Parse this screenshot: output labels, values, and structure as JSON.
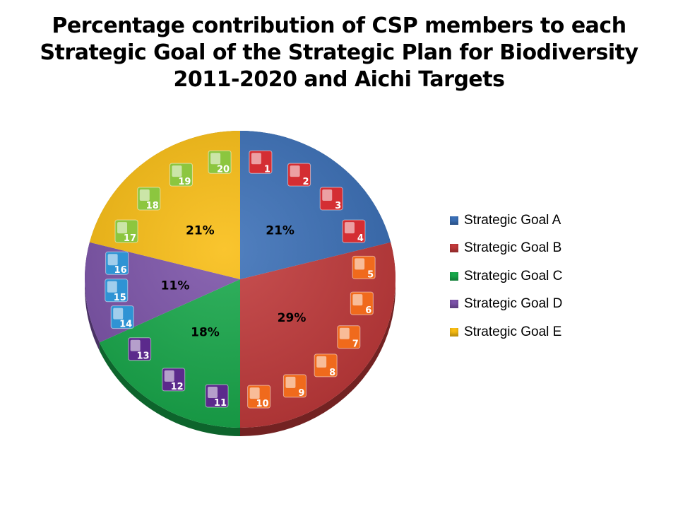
{
  "chart_data": {
    "type": "pie",
    "title": "Percentage contribution of CSP members to each Strategic Goal of the Strategic Plan for Biodiversity 2011-2020 and Aichi Targets",
    "title_lines": [
      "Percentage contribution of CSP members to each",
      "Strategic Goal of the Strategic Plan for Biodiversity",
      "2011-2020 and Aichi Targets"
    ],
    "categories": [
      "Strategic Goal A",
      "Strategic Goal B",
      "Strategic Goal C",
      "Strategic Goal D",
      "Strategic Goal E"
    ],
    "values": [
      21,
      29,
      18,
      11,
      21
    ],
    "labels": [
      "21%",
      "29%",
      "18%",
      "11%",
      "21%"
    ],
    "colors": [
      "#3a6fb7",
      "#c1393a",
      "#17a84a",
      "#7b52a8",
      "#f9bd12"
    ],
    "legend_position": "right",
    "aichi_targets": [
      [
        "1",
        "2",
        "3",
        "4"
      ],
      [
        "5",
        "6",
        "7",
        "8",
        "9",
        "10"
      ],
      [
        "11",
        "12",
        "13"
      ],
      [
        "14",
        "15",
        "16"
      ],
      [
        "17",
        "18",
        "19",
        "20"
      ]
    ],
    "icon_colors": [
      "#d42e33",
      "#f06a1c",
      "#5b2a8c",
      "#2f93d4",
      "#8cc63f"
    ]
  }
}
